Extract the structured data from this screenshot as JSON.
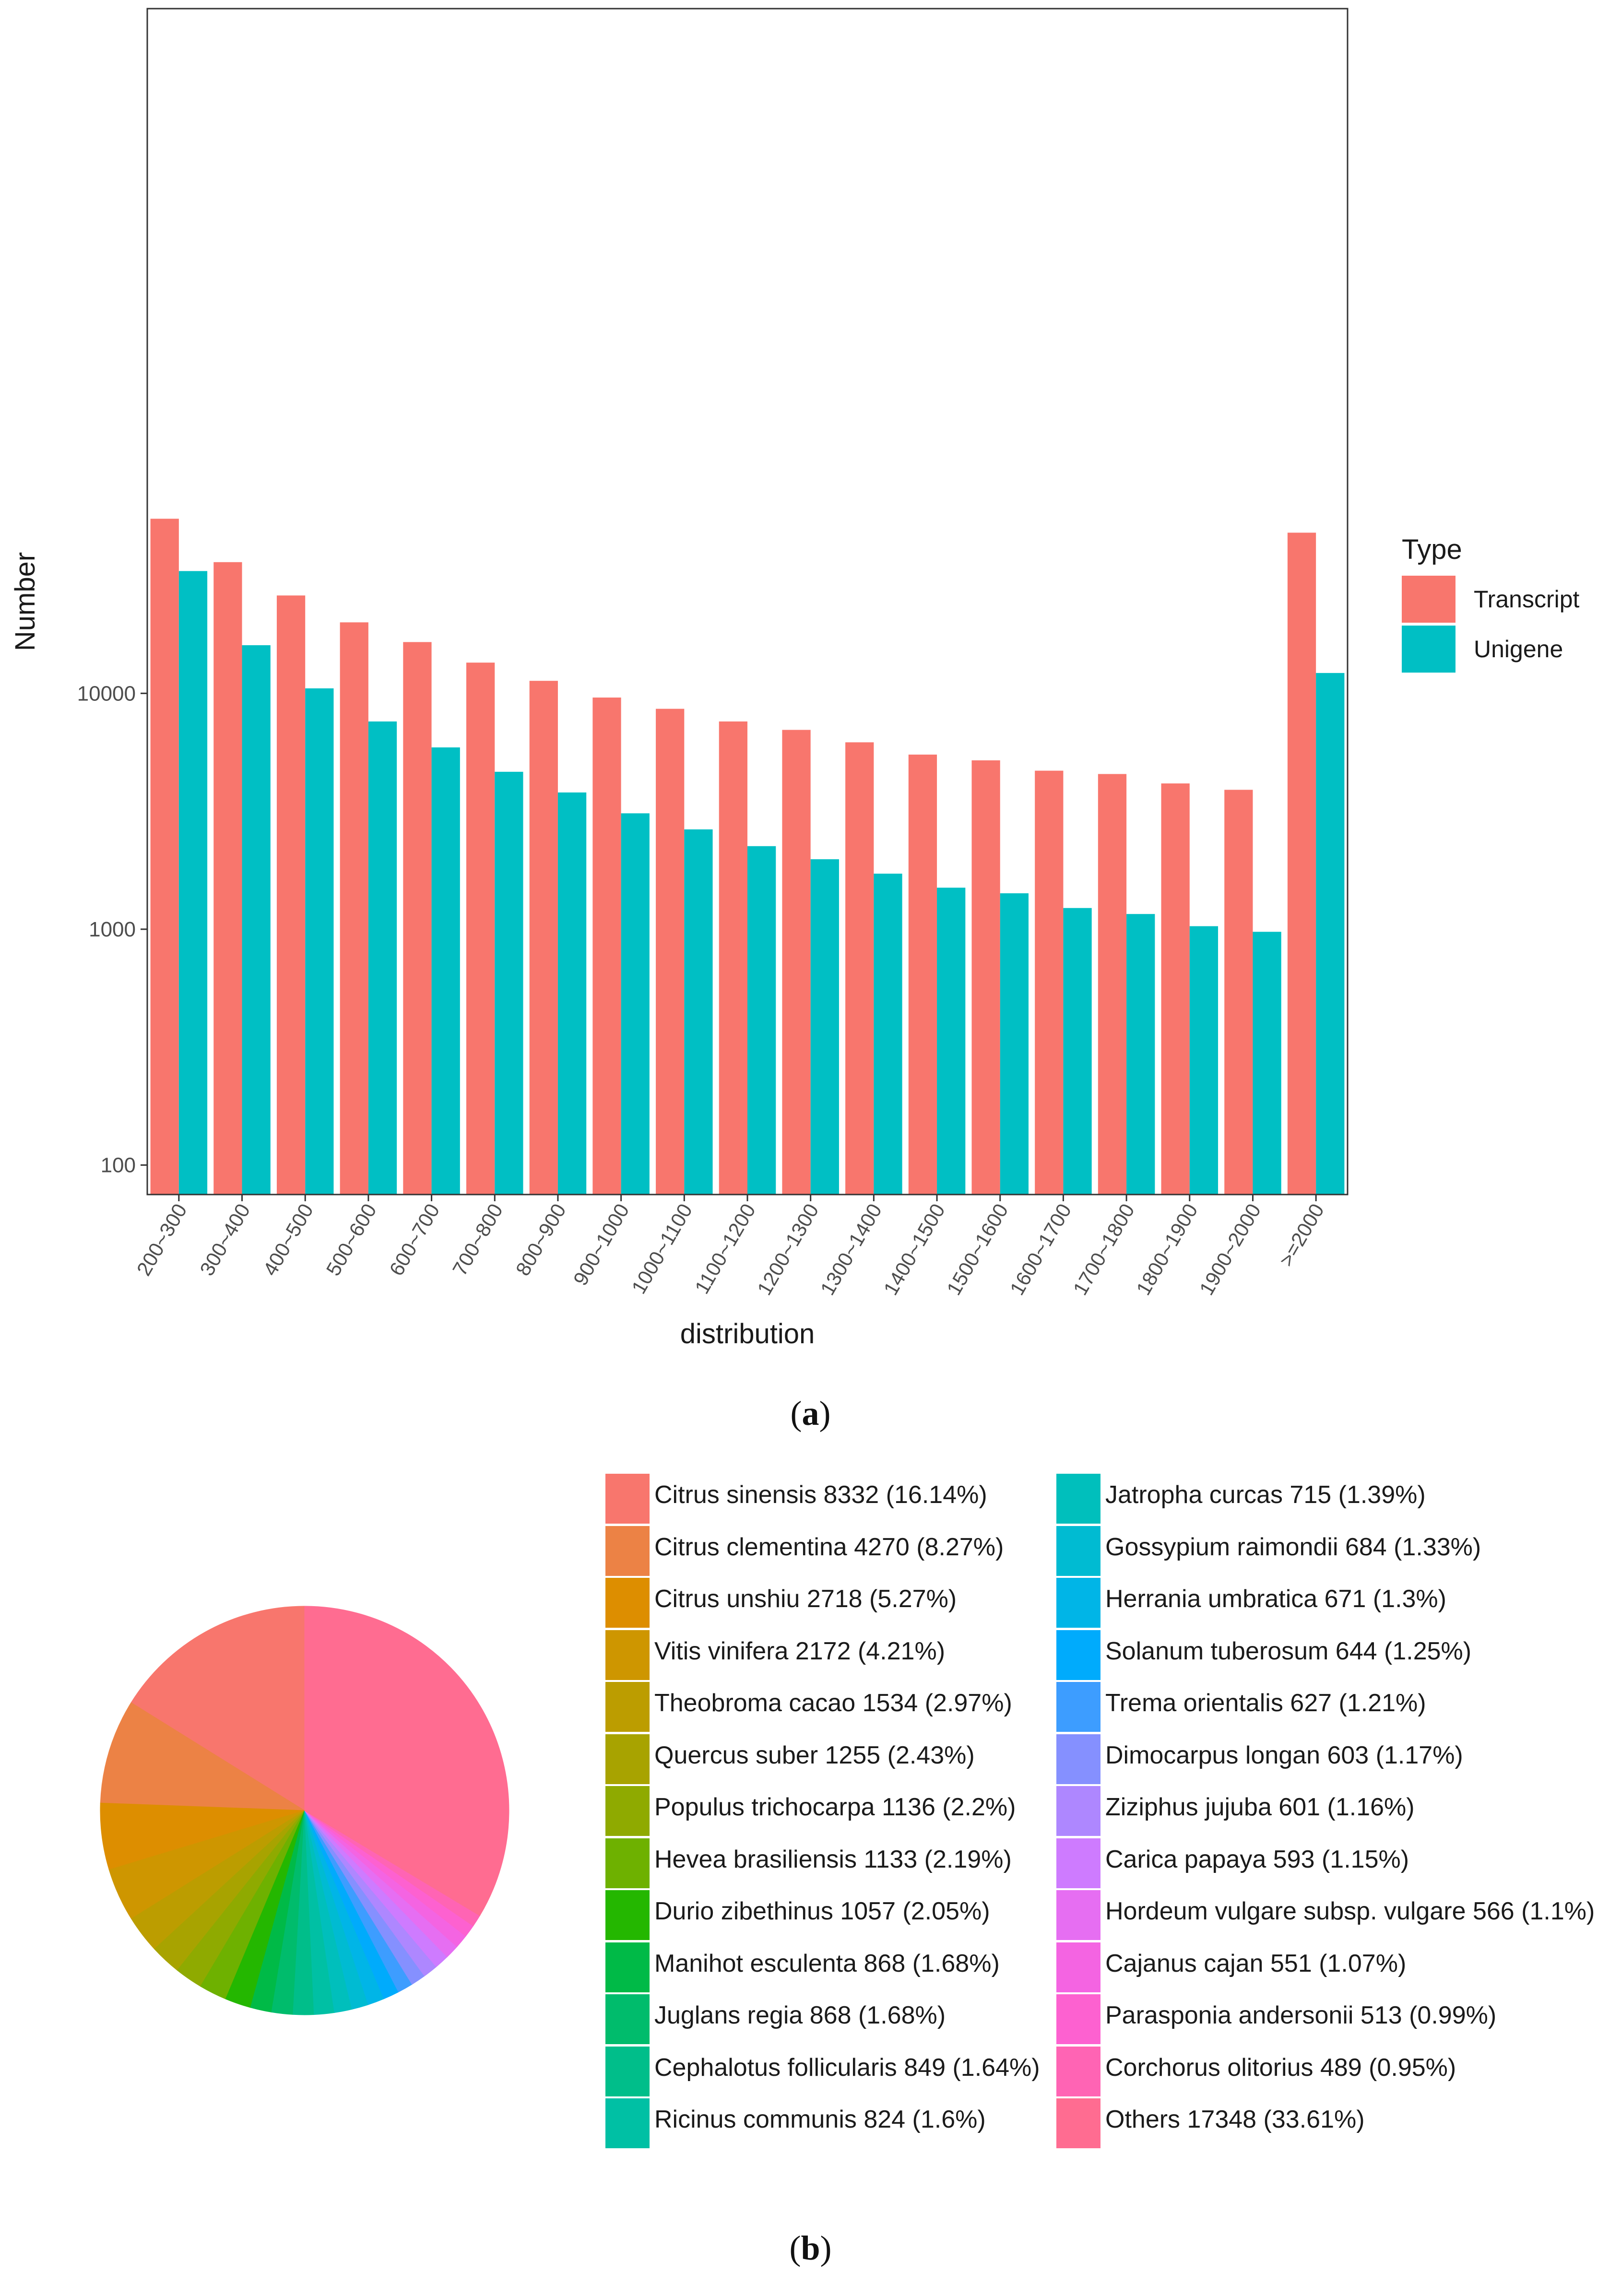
{
  "figure_a_caption": "a",
  "figure_b_caption": "b",
  "chart_data": [
    {
      "type": "bar",
      "xlabel": "distribution",
      "ylabel": "Number",
      "y_scale": "log",
      "ylim": [
        75,
        8000000
      ],
      "y_ticks": [
        100,
        1000,
        10000
      ],
      "y_tick_labels": [
        "100",
        "1000",
        "10000"
      ],
      "categories": [
        "200~300",
        "300~400",
        "400~500",
        "500~600",
        "600~700",
        "700~800",
        "800~900",
        "900~1000",
        "1000~1100",
        "1100~1200",
        "1200~1300",
        "1300~1400",
        "1400~1500",
        "1500~1600",
        "1600~1700",
        "1700~1800",
        "1800~1900",
        "1900~2000",
        ">=2000"
      ],
      "legend_title": "Type",
      "legend_position": "right",
      "grid": false,
      "series": [
        {
          "name": "Transcript",
          "color": "#F8766D",
          "values": [
            55000,
            36000,
            26000,
            20000,
            16500,
            13500,
            11300,
            9600,
            8600,
            7600,
            7000,
            6200,
            5500,
            5200,
            4700,
            4550,
            4150,
            3900,
            48000
          ]
        },
        {
          "name": "Unigene",
          "color": "#00BFC4",
          "values": [
            33000,
            16000,
            10500,
            7600,
            5900,
            4650,
            3800,
            3100,
            2650,
            2250,
            1980,
            1720,
            1500,
            1420,
            1230,
            1160,
            1030,
            975,
            12200
          ]
        }
      ]
    },
    {
      "type": "pie",
      "slices": [
        {
          "label": "Citrus sinensis 8332 (16.14%)",
          "value": 8332,
          "color": "#F8766D"
        },
        {
          "label": "Citrus clementina 4270 (8.27%)",
          "value": 4270,
          "color": "#EC8245"
        },
        {
          "label": "Citrus unshiu 2718 (5.27%)",
          "value": 2718,
          "color": "#DD8E00"
        },
        {
          "label": "Vitis vinifera 2172 (4.21%)",
          "value": 2172,
          "color": "#CE9600"
        },
        {
          "label": "Theobroma cacao 1534 (2.97%)",
          "value": 1534,
          "color": "#BC9D00"
        },
        {
          "label": "Quercus suber 1255 (2.43%)",
          "value": 1255,
          "color": "#A8A300"
        },
        {
          "label": "Populus trichocarpa 1136 (2.2%)",
          "value": 1136,
          "color": "#8FAA00"
        },
        {
          "label": "Hevea brasiliensis 1133 (2.19%)",
          "value": 1133,
          "color": "#6EB100"
        },
        {
          "label": "Durio zibethinus 1057 (2.05%)",
          "value": 1057,
          "color": "#24B700"
        },
        {
          "label": "Manihot esculenta 868 (1.68%)",
          "value": 868,
          "color": "#00BA47"
        },
        {
          "label": "Juglans regia 868 (1.68%)",
          "value": 868,
          "color": "#00BC6C"
        },
        {
          "label": "Cephalotus follicularis 849 (1.64%)",
          "value": 849,
          "color": "#00BE8A"
        },
        {
          "label": "Ricinus communis 824 (1.6%)",
          "value": 824,
          "color": "#00C0A4"
        },
        {
          "label": "Jatropha curcas 715 (1.39%)",
          "value": 715,
          "color": "#00BFBC"
        },
        {
          "label": "Gossypium raimondii 684 (1.33%)",
          "value": 684,
          "color": "#00BBD2"
        },
        {
          "label": "Herrania umbratica 671 (1.3%)",
          "value": 671,
          "color": "#00B5E7"
        },
        {
          "label": "Solanum tuberosum 644 (1.25%)",
          "value": 644,
          "color": "#00ABFC"
        },
        {
          "label": "Trema orientalis 627 (1.21%)",
          "value": 627,
          "color": "#3D9DFF"
        },
        {
          "label": "Dimocarpus longan 603 (1.17%)",
          "value": 603,
          "color": "#8590FF"
        },
        {
          "label": "Ziziphus jujuba 601 (1.16%)",
          "value": 601,
          "color": "#AE87FF"
        },
        {
          "label": "Carica papaya 593 (1.15%)",
          "value": 593,
          "color": "#CE7BFF"
        },
        {
          "label": "Hordeum vulgare subsp. vulgare 566 (1.1%)",
          "value": 566,
          "color": "#E66EF2"
        },
        {
          "label": "Cajanus cajan 551 (1.07%)",
          "value": 551,
          "color": "#F464E2"
        },
        {
          "label": "Parasponia andersonii 513 (0.99%)",
          "value": 513,
          "color": "#FD61D0"
        },
        {
          "label": "Corchorus olitorius 489 (0.95%)",
          "value": 489,
          "color": "#FF64B4"
        },
        {
          "label": "Others 17348 (33.61%)",
          "value": 17348,
          "color": "#FF6C91"
        }
      ]
    }
  ]
}
